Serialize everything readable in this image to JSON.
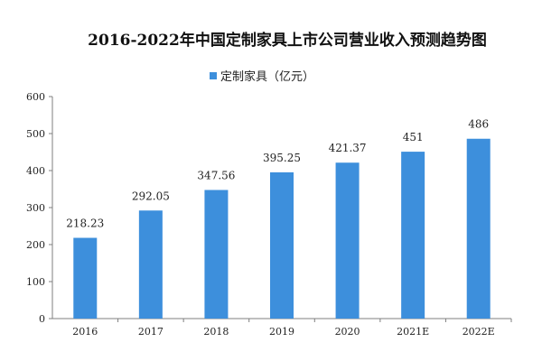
{
  "chart_data": {
    "type": "bar",
    "title": "2016-2022年中国定制家具上市公司营业收入预测趋势图",
    "categories": [
      "2016",
      "2017",
      "2018",
      "2019",
      "2020",
      "2021E",
      "2022E"
    ],
    "series": [
      {
        "name": "定制家具（亿元）",
        "values": [
          218.23,
          292.05,
          347.56,
          395.25,
          421.37,
          451,
          486
        ],
        "labels": [
          "218.23",
          "292.05",
          "347.56",
          "395.25",
          "421.37",
          "451",
          "486"
        ]
      }
    ],
    "ylim": [
      0,
      600
    ],
    "yticks": [
      "0",
      "100",
      "200",
      "300",
      "400",
      "500",
      "600"
    ],
    "grid": false,
    "legend_position": "top",
    "colors": {
      "bar": "#3d8fdc",
      "axis": "#7f7f7f"
    }
  }
}
